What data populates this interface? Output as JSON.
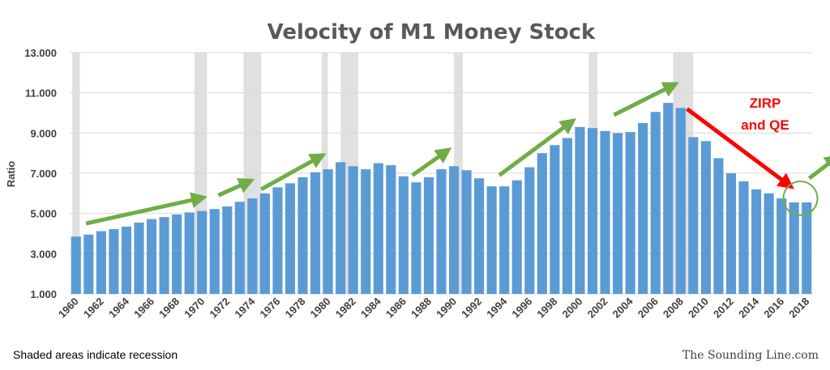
{
  "colors": {
    "bar": "#5b9bd5",
    "recession": "#e0e0e0",
    "grid": "#d9d9d9",
    "up_arrow": "#70ad47",
    "down_arrow": "#ff0000",
    "circle": "#70ad47"
  },
  "chart_data": {
    "type": "bar",
    "title": "Velocity of M1 Money Stock",
    "ylabel": "Ratio",
    "ylim": [
      1,
      13
    ],
    "y_ticks": [
      "1.000",
      "3.000",
      "5.000",
      "7.000",
      "9.000",
      "11.000",
      "13.000"
    ],
    "grid": true,
    "categories": [
      "1960",
      "1961",
      "1962",
      "1963",
      "1964",
      "1965",
      "1966",
      "1967",
      "1968",
      "1969",
      "1970",
      "1971",
      "1972",
      "1973",
      "1974",
      "1975",
      "1976",
      "1977",
      "1978",
      "1979",
      "1980",
      "1981",
      "1982",
      "1983",
      "1984",
      "1985",
      "1986",
      "1987",
      "1988",
      "1989",
      "1990",
      "1991",
      "1992",
      "1993",
      "1994",
      "1995",
      "1996",
      "1997",
      "1998",
      "1999",
      "2000",
      "2001",
      "2002",
      "2003",
      "2004",
      "2005",
      "2006",
      "2007",
      "2008",
      "2009",
      "2010",
      "2011",
      "2012",
      "2013",
      "2014",
      "2015",
      "2016",
      "2017",
      "2018"
    ],
    "x_tick_labels": [
      "1960",
      "1962",
      "1964",
      "1966",
      "1968",
      "1970",
      "1972",
      "1974",
      "1976",
      "1978",
      "1980",
      "1982",
      "1984",
      "1986",
      "1988",
      "1990",
      "1992",
      "1994",
      "1996",
      "1998",
      "2000",
      "2002",
      "2004",
      "2006",
      "2008",
      "2010",
      "2012",
      "2014",
      "2016",
      "2018"
    ],
    "values": [
      3.85,
      3.95,
      4.12,
      4.22,
      4.35,
      4.55,
      4.72,
      4.82,
      4.95,
      5.05,
      5.12,
      5.22,
      5.35,
      5.58,
      5.75,
      6.0,
      6.3,
      6.5,
      6.8,
      7.05,
      7.2,
      7.55,
      7.35,
      7.2,
      7.5,
      7.4,
      6.85,
      6.55,
      6.8,
      7.2,
      7.35,
      7.15,
      6.75,
      6.35,
      6.35,
      6.65,
      7.3,
      8.0,
      8.4,
      8.75,
      9.3,
      9.25,
      9.1,
      9.0,
      9.05,
      9.5,
      10.05,
      10.5,
      10.25,
      8.8,
      8.6,
      7.75,
      7.0,
      6.6,
      6.2,
      6.0,
      5.75,
      5.55,
      5.55
    ],
    "recessions": [
      [
        1960.2,
        1960.8
      ],
      [
        1969.9,
        1970.9
      ],
      [
        1973.8,
        1975.2
      ],
      [
        1980.0,
        1980.5
      ],
      [
        1981.5,
        1982.9
      ],
      [
        1990.5,
        1991.2
      ],
      [
        2001.2,
        2001.9
      ],
      [
        2007.9,
        2009.5
      ]
    ],
    "annotations": {
      "zirp_line1": "ZIRP",
      "zirp_line2": "and QE"
    },
    "trend_arrows": [
      {
        "from": [
          1960.8,
          4.5
        ],
        "to": [
          1969.8,
          5.75
        ]
      },
      {
        "from": [
          1971.3,
          5.9
        ],
        "to": [
          1973.6,
          6.55
        ]
      },
      {
        "from": [
          1974.7,
          6.2
        ],
        "to": [
          1979.3,
          7.8
        ]
      },
      {
        "from": [
          1986.7,
          6.9
        ],
        "to": [
          1989.3,
          8.05
        ]
      },
      {
        "from": [
          1993.6,
          6.9
        ],
        "to": [
          1999.2,
          9.5
        ]
      },
      {
        "from": [
          2002.7,
          9.9
        ],
        "to": [
          2007.3,
          11.35
        ]
      },
      {
        "from": [
          2018.2,
          6.75
        ],
        "to": [
          2020.2,
          7.7
        ]
      }
    ],
    "down_arrow": {
      "from": [
        2008.5,
        10.2
      ],
      "to": [
        2016.5,
        6.45
      ]
    },
    "circle_marker": {
      "center": [
        2017.5,
        5.75
      ]
    },
    "footnote": "Shaded areas indicate recession",
    "credit": "The Sounding Line.com"
  }
}
